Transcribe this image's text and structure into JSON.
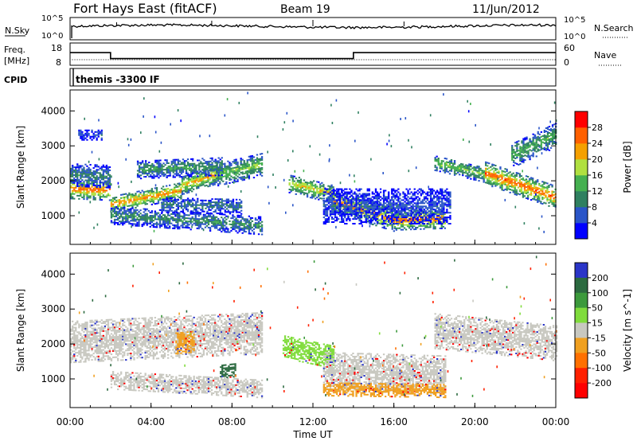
{
  "header": {
    "station": "Fort Hays East (fitACF)",
    "beam": "Beam 19",
    "date": "11/Jun/2012"
  },
  "strips": {
    "nsky": {
      "label": "N.Sky",
      "right_label": "N.Search",
      "ticks": [
        "10^5",
        "10^0"
      ]
    },
    "freq": {
      "label": "Freq.",
      "unit": "[MHz]",
      "right_label": "Nave",
      "left_ticks": [
        "18",
        "8"
      ],
      "right_ticks": [
        "60",
        "0"
      ]
    },
    "cpid": {
      "label": "CPID",
      "text": "themis -3300 IF"
    }
  },
  "xaxis": {
    "label": "Time UT",
    "ticks": [
      "00:00",
      "04:00",
      "08:00",
      "12:00",
      "16:00",
      "20:00",
      "00:00"
    ]
  },
  "panels": {
    "power": {
      "ylabel": "Slant Range [km]",
      "colorbar_label": "Power [dB]"
    },
    "velocity": {
      "ylabel": "Slant Range [km]",
      "colorbar_label": "Velocity [m s^-1]"
    }
  },
  "chart_data": {
    "type": "heatmap",
    "xlim_hours": [
      0,
      24
    ],
    "ylim_km": [
      180,
      4600
    ],
    "yticks": [
      1000,
      2000,
      3000,
      4000
    ],
    "xticks_hours": [
      0,
      4,
      8,
      12,
      16,
      20,
      24
    ],
    "frequency_mhz": {
      "segments": [
        {
          "start_hour": 0,
          "end_hour": 2,
          "value": 13.7
        },
        {
          "start_hour": 2,
          "end_hour": 14,
          "value": 11.0
        },
        {
          "start_hour": 14,
          "end_hour": 24,
          "value": 13.7
        }
      ]
    },
    "nave_approx": 15,
    "power": {
      "label": "Power [dB]",
      "ticks": [
        4,
        8,
        12,
        16,
        20,
        24,
        28
      ],
      "colors": [
        "#0000ff",
        "#2a55c8",
        "#2f8060",
        "#45b050",
        "#b0e040",
        "#f5a000",
        "#ff6000",
        "#ff0000"
      ],
      "bands": [
        {
          "t0": 0.0,
          "t1": 2.0,
          "c0": 1750,
          "c1": 1700,
          "w": 280,
          "p": 26
        },
        {
          "t0": 0.0,
          "t1": 2.0,
          "c0": 2150,
          "c1": 2100,
          "w": 320,
          "p": 10
        },
        {
          "t0": 0.4,
          "t1": 1.6,
          "c0": 3300,
          "c1": 3300,
          "w": 150,
          "p": 6
        },
        {
          "t0": 2.0,
          "t1": 5.5,
          "c0": 1300,
          "c1": 1700,
          "w": 230,
          "p": 24
        },
        {
          "t0": 5.5,
          "t1": 7.2,
          "c0": 1850,
          "c1": 2150,
          "w": 260,
          "p": 22
        },
        {
          "t0": 7.2,
          "t1": 9.5,
          "c0": 2150,
          "c1": 2450,
          "w": 320,
          "p": 16
        },
        {
          "t0": 3.3,
          "t1": 7.5,
          "c0": 2300,
          "c1": 2400,
          "w": 260,
          "p": 12
        },
        {
          "t0": 2.0,
          "t1": 9.5,
          "c0": 1000,
          "c1": 700,
          "w": 260,
          "p": 11
        },
        {
          "t0": 4.5,
          "t1": 8.5,
          "c0": 1300,
          "c1": 1250,
          "w": 220,
          "p": 9
        },
        {
          "t0": 10.8,
          "t1": 13.0,
          "c0": 1900,
          "c1": 1600,
          "w": 260,
          "p": 20
        },
        {
          "t0": 13.0,
          "t1": 16.0,
          "c0": 1400,
          "c1": 850,
          "w": 320,
          "p": 24
        },
        {
          "t0": 16.0,
          "t1": 18.5,
          "c0": 850,
          "c1": 900,
          "w": 280,
          "p": 26
        },
        {
          "t0": 12.5,
          "t1": 18.8,
          "c0": 1250,
          "c1": 1250,
          "w": 500,
          "p": 6
        },
        {
          "t0": 18.0,
          "t1": 20.5,
          "c0": 2500,
          "c1": 2150,
          "w": 220,
          "p": 16
        },
        {
          "t0": 20.5,
          "t1": 24.0,
          "c0": 2200,
          "c1": 1500,
          "w": 320,
          "p": 26
        },
        {
          "t0": 21.8,
          "t1": 24.0,
          "c0": 2700,
          "c1": 3300,
          "w": 350,
          "p": 14
        }
      ]
    },
    "velocity": {
      "label": "Velocity [m s^-1]",
      "ticks": [
        200,
        100,
        50,
        15,
        -15,
        -50,
        -100,
        -200
      ],
      "colors": [
        "#2a35c8",
        "#2c6a40",
        "#3c9a3c",
        "#80dc3c",
        "#c8c8c0",
        "#f0a020",
        "#ff7000",
        "#ff2000",
        "#ff0000"
      ],
      "bands": [
        {
          "t0": 0.0,
          "t1": 9.5,
          "c0": 2050,
          "c1": 2300,
          "w": 600,
          "v": 0
        },
        {
          "t0": 5.2,
          "t1": 6.1,
          "c0": 2000,
          "c1": 2050,
          "w": 300,
          "v": -40
        },
        {
          "t0": 2.0,
          "t1": 9.5,
          "c0": 950,
          "c1": 700,
          "w": 260,
          "v": 0
        },
        {
          "t0": 10.5,
          "t1": 13.0,
          "c0": 1900,
          "c1": 1600,
          "w": 320,
          "v": 25
        },
        {
          "t0": 12.5,
          "t1": 18.5,
          "c0": 1200,
          "c1": 1100,
          "w": 550,
          "v": 0
        },
        {
          "t0": 12.5,
          "t1": 18.5,
          "c0": 700,
          "c1": 650,
          "w": 200,
          "v": -40
        },
        {
          "t0": 18.0,
          "t1": 24.0,
          "c0": 2350,
          "c1": 2000,
          "w": 500,
          "v": 0
        },
        {
          "t0": 7.4,
          "t1": 8.2,
          "c0": 1200,
          "c1": 1250,
          "w": 200,
          "v": 120
        }
      ]
    }
  }
}
